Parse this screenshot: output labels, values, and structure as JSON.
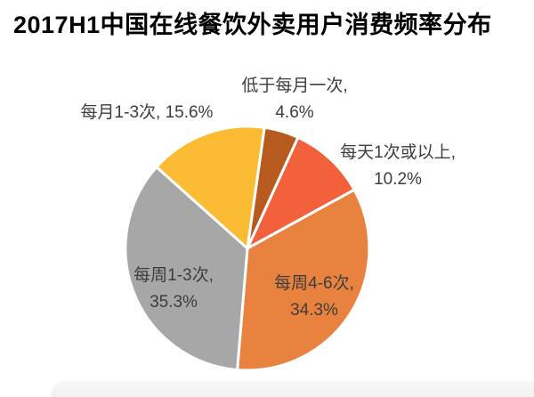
{
  "title": "2017H1中国在线餐饮外卖用户消费频率分布",
  "chart_data": {
    "type": "pie",
    "title": "2017H1中国在线餐饮外卖用户消费频率分布",
    "unit": "%",
    "start_angle_deg": 8,
    "direction": "clockwise",
    "legend_position": "none",
    "label_format": "name, value%",
    "series": [
      {
        "id": "less-than-monthly",
        "name": "低于每月一次",
        "value": 4.6,
        "color": "#B65A1E"
      },
      {
        "id": "daily-or-more",
        "name": "每天1次或以上",
        "value": 10.2,
        "color": "#F2613C"
      },
      {
        "id": "weekly-4-6",
        "name": "每周4-6次",
        "value": 34.3,
        "color": "#E8823E"
      },
      {
        "id": "weekly-1-3",
        "name": "每周1-3次",
        "value": 35.3,
        "color": "#A7A7A7"
      },
      {
        "id": "monthly-1-3",
        "name": "每月1-3次",
        "value": 15.6,
        "color": "#FBBC34"
      }
    ]
  },
  "callouts": [
    {
      "lines": [
        "低于每月一次,",
        "4.6%"
      ]
    },
    {
      "lines": [
        "每月1-3次, 15.6%"
      ]
    },
    {
      "lines": [
        "每天1次或以上,",
        "10.2%"
      ]
    },
    {
      "lines": [
        "每周1-3次,",
        "35.3%"
      ]
    },
    {
      "lines": [
        "每周4-6次,",
        "34.3%"
      ]
    }
  ],
  "colors": {
    "background": "#ffffff",
    "title_text": "#000000",
    "label_text": "#3d3d3d",
    "slice_separator": "#ffffff",
    "bottom_band": "#f4f4f4"
  }
}
